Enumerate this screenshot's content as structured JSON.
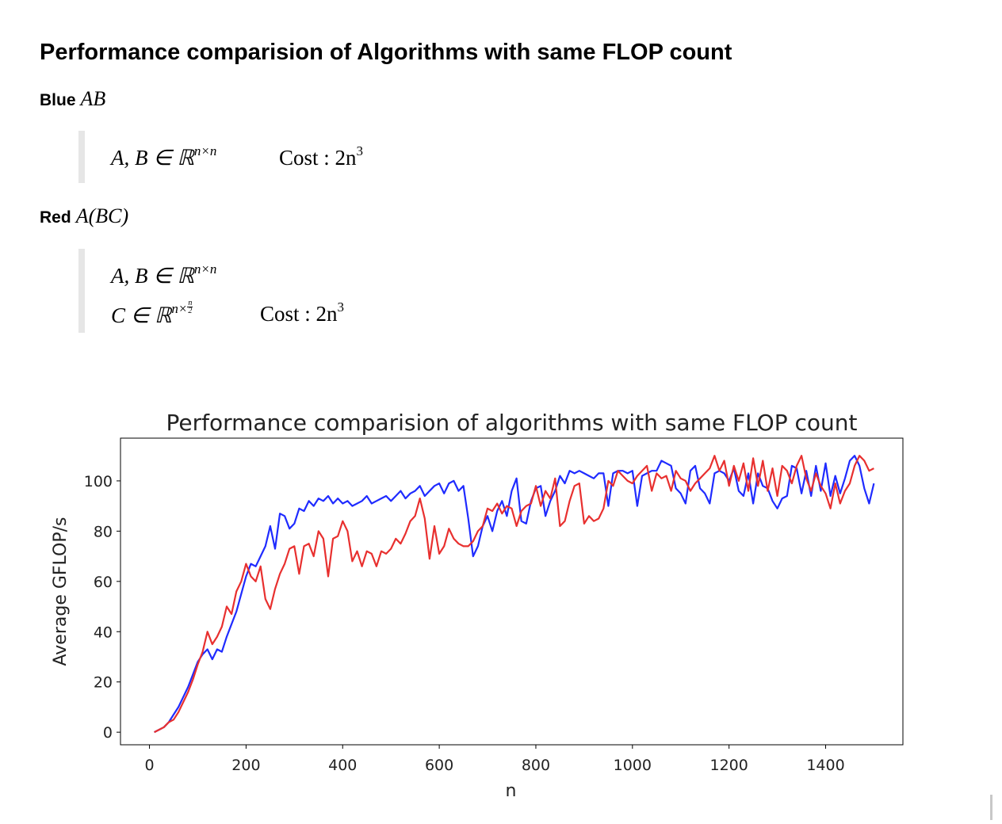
{
  "page": {
    "heading": "Performance comparision of Algorithms with same FLOP count",
    "blue": {
      "label": "Blue",
      "expr": "AB",
      "line1": "A, B ∈ ℝ",
      "line1_sup": "n×n",
      "cost": "Cost : 2n",
      "cost_sup": "3"
    },
    "red": {
      "label": "Red",
      "expr_a": "A",
      "expr_paren": "(BC)",
      "line1": "A, B ∈ ℝ",
      "line1_sup": "n×n",
      "line2": "C ∈ ℝ",
      "line2_sup": "n×",
      "frac_num": "n",
      "frac_den": "2",
      "cost": "Cost : 2n",
      "cost_sup": "3"
    }
  },
  "chart_data": {
    "type": "line",
    "title": "Performance comparision of algorithms with same FLOP count",
    "xlabel": "n",
    "ylabel": "Average GFLOP/s",
    "xlim": [
      -60,
      1560
    ],
    "ylim": [
      -5,
      117
    ],
    "xticks": [
      0,
      200,
      400,
      600,
      800,
      1000,
      1200,
      1400
    ],
    "yticks": [
      0,
      20,
      40,
      60,
      80,
      100
    ],
    "grid": false,
    "colors": {
      "blue": "#1f2bff",
      "red": "#e8302f"
    },
    "series": [
      {
        "color": "blue",
        "x": [
          10,
          20,
          30,
          40,
          50,
          60,
          70,
          80,
          90,
          100,
          110,
          120,
          130,
          140,
          150,
          160,
          170,
          180,
          190,
          200,
          210,
          220,
          230,
          240,
          250,
          260,
          270,
          280,
          290,
          300,
          310,
          320,
          330,
          340,
          350,
          360,
          370,
          380,
          390,
          400,
          410,
          420,
          430,
          440,
          450,
          460,
          470,
          480,
          490,
          500,
          510,
          520,
          530,
          540,
          550,
          560,
          570,
          580,
          590,
          600,
          610,
          620,
          630,
          640,
          650,
          660,
          670,
          680,
          690,
          700,
          710,
          720,
          730,
          740,
          750,
          760,
          770,
          780,
          790,
          800,
          810,
          820,
          830,
          840,
          850,
          860,
          870,
          880,
          890,
          900,
          910,
          920,
          930,
          940,
          950,
          960,
          970,
          980,
          990,
          1000,
          1010,
          1020,
          1030,
          1040,
          1050,
          1060,
          1070,
          1080,
          1090,
          1100,
          1110,
          1120,
          1130,
          1140,
          1150,
          1160,
          1170,
          1180,
          1190,
          1200,
          1210,
          1220,
          1230,
          1240,
          1250,
          1260,
          1270,
          1280,
          1290,
          1300,
          1310,
          1320,
          1330,
          1340,
          1350,
          1360,
          1370,
          1380,
          1390,
          1400,
          1410,
          1420,
          1430,
          1440,
          1450,
          1460,
          1470,
          1480,
          1490,
          1500
        ],
        "y": [
          0,
          1,
          2,
          4,
          7,
          10,
          14,
          18,
          23,
          28,
          31,
          33,
          29,
          33,
          32,
          38,
          43,
          48,
          55,
          62,
          67,
          66,
          70,
          74,
          82,
          73,
          87,
          86,
          81,
          83,
          89,
          88,
          92,
          90,
          93,
          92,
          94,
          91,
          93,
          91,
          92,
          90,
          91,
          92,
          94,
          91,
          92,
          93,
          94,
          92,
          94,
          96,
          93,
          95,
          96,
          98,
          94,
          96,
          98,
          99,
          95,
          99,
          100,
          96,
          98,
          85,
          70,
          74,
          82,
          86,
          80,
          88,
          92,
          86,
          96,
          101,
          84,
          83,
          92,
          97,
          98,
          86,
          92,
          96,
          102,
          99,
          104,
          103,
          104,
          103,
          102,
          101,
          103,
          103,
          90,
          103,
          104,
          104,
          103,
          104,
          90,
          102,
          103,
          104,
          104,
          108,
          107,
          106,
          97,
          95,
          91,
          104,
          106,
          97,
          95,
          91,
          103,
          104,
          103,
          100,
          105,
          96,
          94,
          103,
          91,
          103,
          98,
          97,
          92,
          89,
          93,
          94,
          106,
          105,
          95,
          104,
          94,
          106,
          96,
          107,
          94,
          102,
          95,
          101,
          108,
          110,
          106,
          97,
          91,
          99
        ]
      },
      {
        "color": "red",
        "x": [
          10,
          20,
          30,
          40,
          50,
          60,
          70,
          80,
          90,
          100,
          110,
          120,
          130,
          140,
          150,
          160,
          170,
          180,
          190,
          200,
          210,
          220,
          230,
          240,
          250,
          260,
          270,
          280,
          290,
          300,
          310,
          320,
          330,
          340,
          350,
          360,
          370,
          380,
          390,
          400,
          410,
          420,
          430,
          440,
          450,
          460,
          470,
          480,
          490,
          500,
          510,
          520,
          530,
          540,
          550,
          560,
          570,
          580,
          590,
          600,
          610,
          620,
          630,
          640,
          650,
          660,
          670,
          680,
          690,
          700,
          710,
          720,
          730,
          740,
          750,
          760,
          770,
          780,
          790,
          800,
          810,
          820,
          830,
          840,
          850,
          860,
          870,
          880,
          890,
          900,
          910,
          920,
          930,
          940,
          950,
          960,
          970,
          980,
          990,
          1000,
          1010,
          1020,
          1030,
          1040,
          1050,
          1060,
          1070,
          1080,
          1090,
          1100,
          1110,
          1120,
          1130,
          1140,
          1150,
          1160,
          1170,
          1180,
          1190,
          1200,
          1210,
          1220,
          1230,
          1240,
          1250,
          1260,
          1270,
          1280,
          1290,
          1300,
          1310,
          1320,
          1330,
          1340,
          1350,
          1360,
          1370,
          1380,
          1390,
          1400,
          1410,
          1420,
          1430,
          1440,
          1450,
          1460,
          1470,
          1480,
          1490,
          1500
        ],
        "y": [
          0,
          1,
          2,
          4,
          5,
          8,
          12,
          16,
          21,
          27,
          32,
          40,
          35,
          38,
          42,
          50,
          47,
          56,
          60,
          67,
          62,
          60,
          66,
          53,
          49,
          57,
          63,
          67,
          73,
          74,
          63,
          74,
          75,
          70,
          80,
          77,
          62,
          77,
          78,
          84,
          80,
          68,
          72,
          66,
          72,
          71,
          66,
          72,
          71,
          73,
          77,
          75,
          79,
          84,
          86,
          93,
          85,
          69,
          82,
          71,
          74,
          81,
          77,
          75,
          74,
          74,
          76,
          80,
          82,
          89,
          88,
          91,
          87,
          90,
          89,
          82,
          88,
          90,
          91,
          98,
          90,
          96,
          93,
          101,
          82,
          84,
          92,
          98,
          99,
          83,
          86,
          84,
          85,
          89,
          100,
          98,
          104,
          102,
          100,
          99,
          102,
          104,
          106,
          96,
          103,
          101,
          102,
          96,
          104,
          101,
          100,
          96,
          99,
          101,
          103,
          105,
          110,
          104,
          108,
          98,
          106,
          100,
          107,
          96,
          109,
          98,
          108,
          96,
          105,
          94,
          106,
          104,
          99,
          106,
          110,
          101,
          96,
          103,
          98,
          95,
          89,
          99,
          91,
          96,
          99,
          106,
          110,
          108,
          104,
          105
        ]
      }
    ]
  }
}
